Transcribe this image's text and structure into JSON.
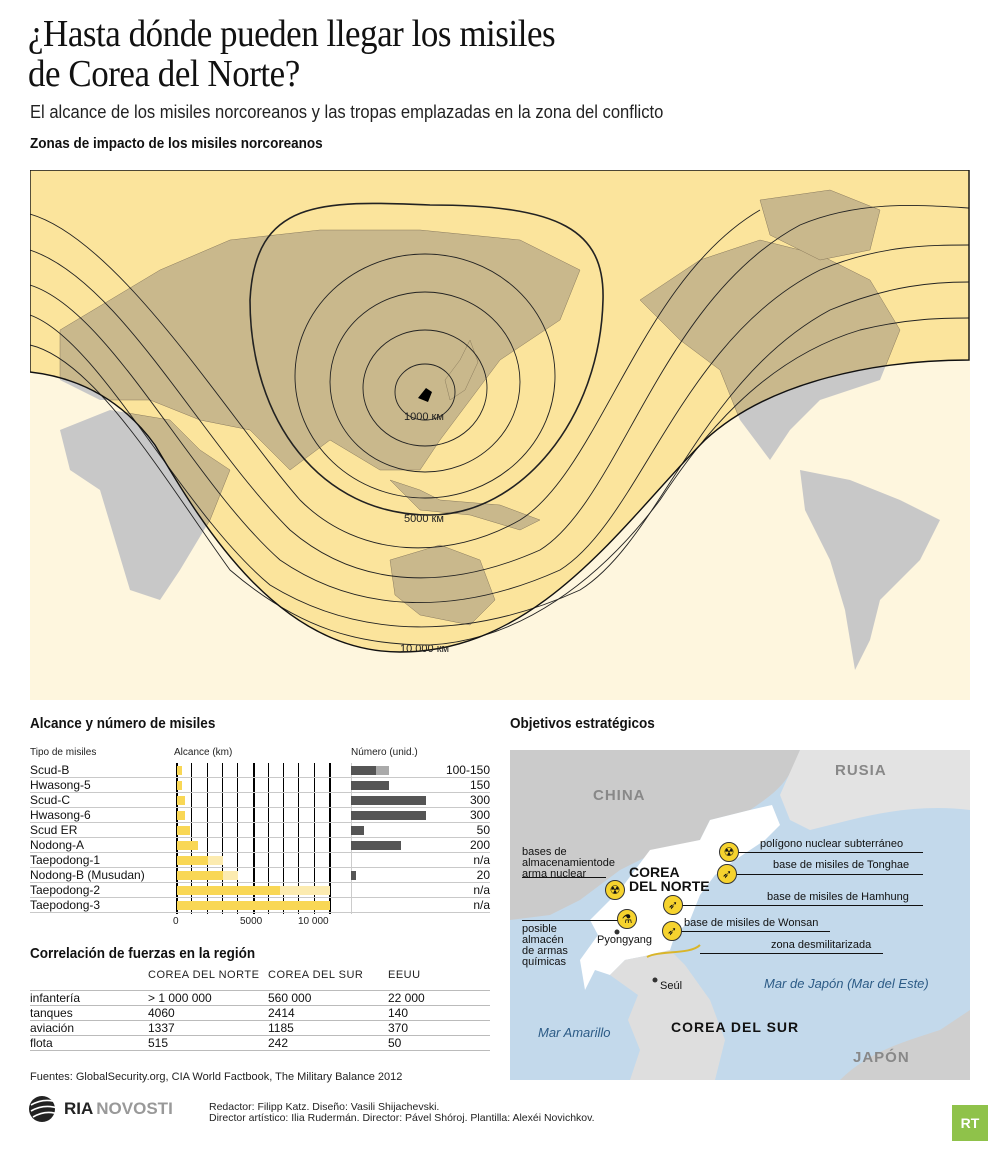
{
  "header": {
    "title_line1": "¿Hasta dónde pueden llegar los misiles",
    "title_line2": "de Corea del Norte?",
    "subtitle": "El alcance de los misiles norcoreanos y las tropas emplazadas en la zona del conflicto"
  },
  "world_map": {
    "heading": "Zonas de impacto de los misiles norcoreanos",
    "ring_labels": [
      "1000 км",
      "5000 км",
      "10 000 км"
    ],
    "colors": {
      "zone": "#fbe49c",
      "outside": "#fef6de",
      "land_in_zone": "#c9b88c",
      "land_outside": "#c8c8c8",
      "origin": "#000000"
    }
  },
  "missiles": {
    "heading": "Alcance y número de misiles",
    "col_type": "Tipo de misiles",
    "col_range": "Alcance (km)",
    "col_number": "Número (unid.)",
    "axis_ticks": [
      "0",
      "5000",
      "10 000"
    ],
    "rows": [
      {
        "name": "Scud-B",
        "range": 300,
        "range_max": 300,
        "count": 100,
        "count_max": 150,
        "count_label": "100-150"
      },
      {
        "name": "Hwasong-5",
        "range": 340,
        "range_max": 340,
        "count": 150,
        "count_max": 150,
        "count_label": "150"
      },
      {
        "name": "Scud-C",
        "range": 550,
        "range_max": 550,
        "count": 300,
        "count_max": 300,
        "count_label": "300"
      },
      {
        "name": "Hwasong-6",
        "range": 550,
        "range_max": 550,
        "count": 300,
        "count_max": 300,
        "count_label": "300"
      },
      {
        "name": "Scud ER",
        "range": 850,
        "range_max": 850,
        "count": 50,
        "count_max": 50,
        "count_label": "50"
      },
      {
        "name": "Nodong-A",
        "range": 1350,
        "range_max": 1350,
        "count": 200,
        "count_max": 200,
        "count_label": "200"
      },
      {
        "name": "Taepodong-1",
        "range": 2000,
        "range_max": 3000,
        "count": null,
        "count_max": null,
        "count_label": "n/a"
      },
      {
        "name": "Nodong-B (Musudan)",
        "range": 3000,
        "range_max": 4000,
        "count": 20,
        "count_max": 20,
        "count_label": "20"
      },
      {
        "name": "Taepodong-2",
        "range": 6700,
        "range_max": 10000,
        "count": null,
        "count_max": null,
        "count_label": "n/a"
      },
      {
        "name": "Taepodong-3",
        "range": 10000,
        "range_max": 10000,
        "count": null,
        "count_max": null,
        "count_label": "n/a"
      }
    ],
    "colors": {
      "range": "#f9d755",
      "range_max": "#fcebb0",
      "count": "#555555",
      "count_max": "#aaaaaa"
    }
  },
  "chart_data": {
    "type": "bar",
    "categories": [
      "Scud-B",
      "Hwasong-5",
      "Scud-C",
      "Hwasong-6",
      "Scud ER",
      "Nodong-A",
      "Taepodong-1",
      "Nodong-B (Musudan)",
      "Taepodong-2",
      "Taepodong-3"
    ],
    "series": [
      {
        "name": "Alcance (km)",
        "values": [
          300,
          340,
          550,
          550,
          850,
          1350,
          2000,
          3000,
          6700,
          10000
        ],
        "max_values": [
          300,
          340,
          550,
          550,
          850,
          1350,
          3000,
          4000,
          10000,
          10000
        ]
      },
      {
        "name": "Número (unid.)",
        "values": [
          100,
          150,
          300,
          300,
          50,
          200,
          null,
          20,
          null,
          null
        ],
        "max_values": [
          150,
          150,
          300,
          300,
          50,
          200,
          null,
          20,
          null,
          null
        ]
      }
    ],
    "xlim": [
      0,
      10000
    ],
    "grid": true
  },
  "forces": {
    "heading": "Correlación de fuerzas en la región",
    "columns": [
      "COREA DEL NORTE",
      "COREA DEL SUR",
      "EEUU"
    ],
    "rows": [
      {
        "label": "infantería",
        "values": [
          "> 1 000 000",
          "560 000",
          "22 000"
        ]
      },
      {
        "label": "tanques",
        "values": [
          "4060",
          "2414",
          "140"
        ]
      },
      {
        "label": "aviación",
        "values": [
          "1337",
          "1185",
          "370"
        ]
      },
      {
        "label": "flota",
        "values": [
          "515",
          "242",
          "50"
        ]
      }
    ]
  },
  "targets": {
    "heading": "Objetivos estratégicos",
    "countries": {
      "china": "CHINA",
      "russia": "RUSIA",
      "north": "COREA",
      "north2": "DEL NORTE",
      "south": "COREA DEL SUR",
      "japan": "JAPÓN"
    },
    "seas": {
      "japan_sea": "Mar de Japón (Mar del Este)",
      "yellow_sea": "Mar Amarillo"
    },
    "cities": {
      "pyongyang": "Pyongyang",
      "seoul": "Seúl"
    },
    "labels": {
      "nuclear_storage": [
        "bases de",
        "almacenamientode",
        "arma nuclear"
      ],
      "chemical": [
        "posible",
        "almacén",
        "de armas",
        "químicas"
      ],
      "nuclear_test": "polígono nuclear subterráneo",
      "tonghae": "base de misiles de Tonghae",
      "hamhung": "base de misiles de Hamhung",
      "wonsan": "base de misiles de Wonsan",
      "dmz": "zona desmilitarizada"
    },
    "icons": {
      "nuclear": "radiation-icon",
      "missile": "missile-icon",
      "chemical": "flask-icon"
    },
    "colors": {
      "sea": "#c3d9eb",
      "china": "#cbcbcb",
      "russia": "#e3e3e3",
      "north": "#ffffff",
      "south": "#dedede",
      "icon": "#f6d32e",
      "dmz": "#d9b52a"
    }
  },
  "footer": {
    "sources": "Fuentes: GlobalSecurity.org, CIA World Factbook, The Military Balance 2012",
    "logo_ria": "RIA",
    "logo_novosti": "NOVOSTI",
    "credits1": "Redactor: Filipp Katz. Diseño: Vasili Shijachevski.",
    "credits2": "Director artístico: Ilia Rudermán. Director: Pável Shóroj. Plantilla: Alexéi Novichkov.",
    "rt_logo": "RT"
  }
}
